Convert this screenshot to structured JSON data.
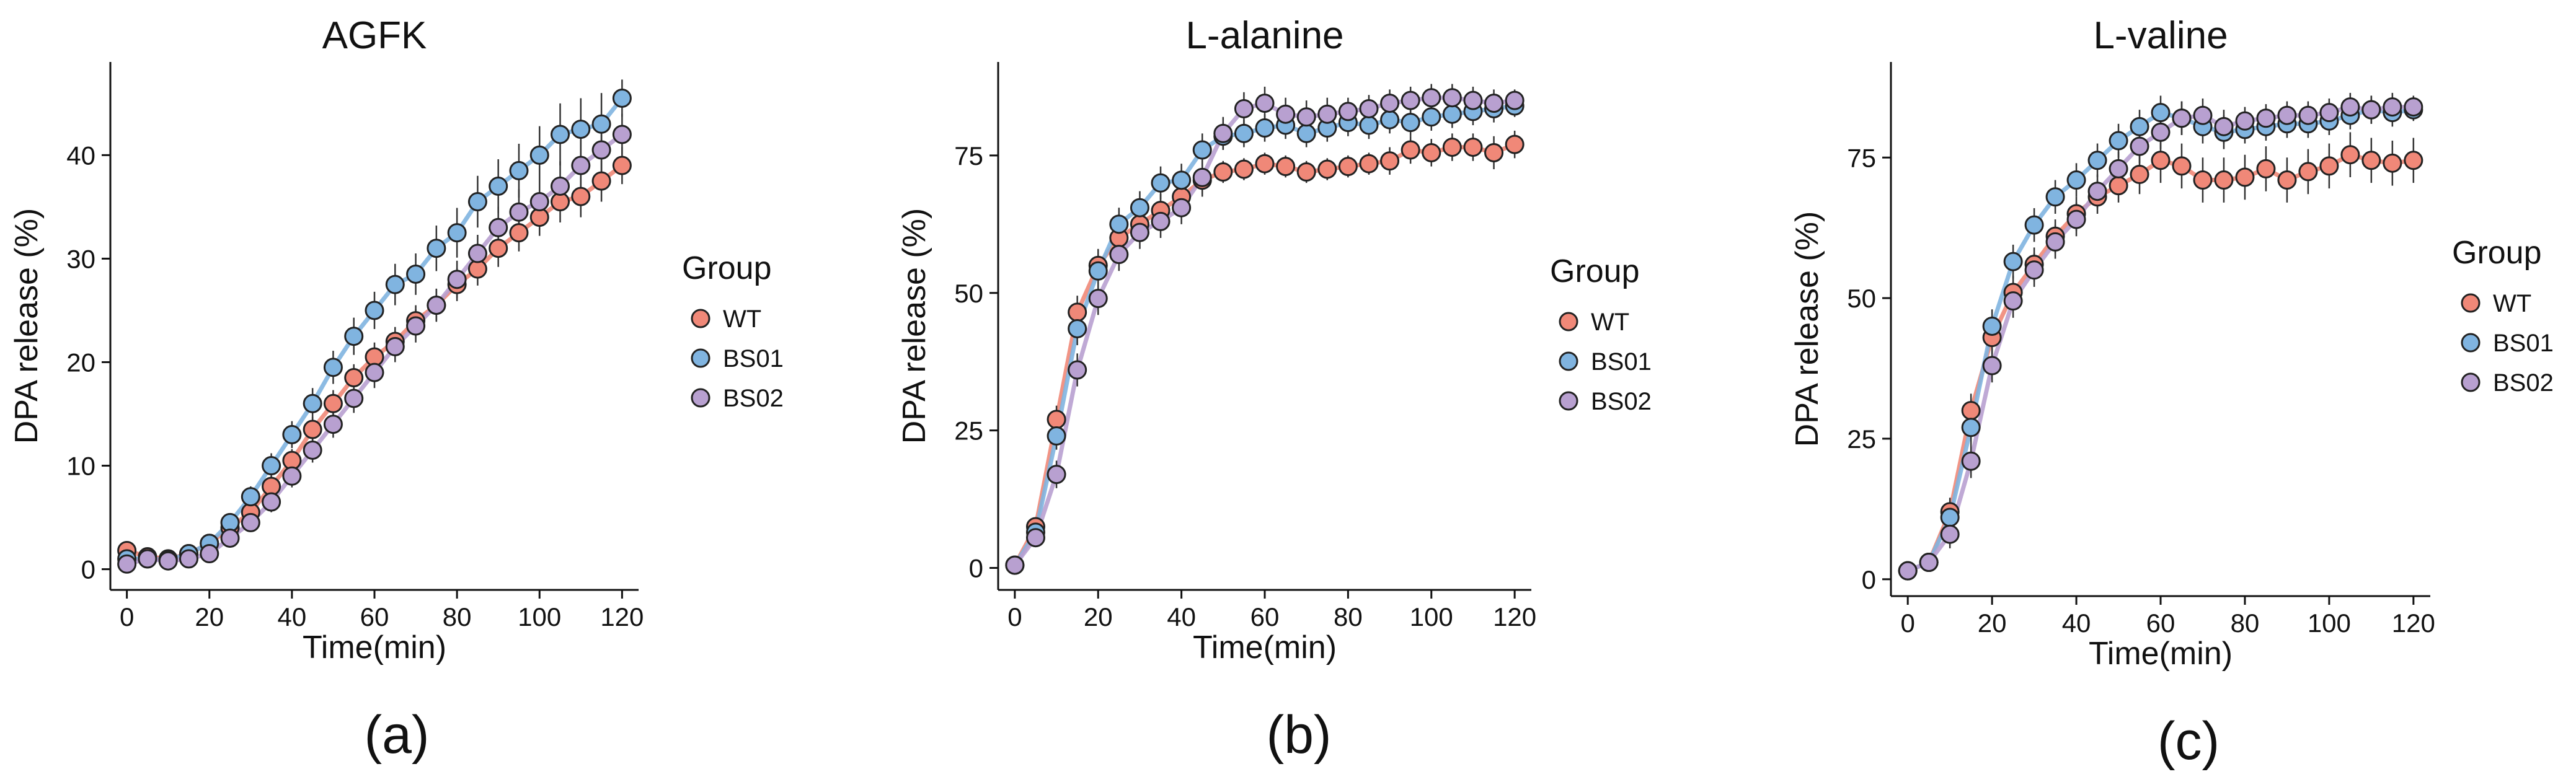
{
  "chart_data": [
    {
      "type": "line",
      "title": "AGFK",
      "panel_label": "(a)",
      "xlabel": "Time(min)",
      "ylabel": "DPA release (%)",
      "xlim": [
        -4,
        124
      ],
      "ylim": [
        -2,
        49
      ],
      "xticks": [
        0,
        20,
        40,
        60,
        80,
        100,
        120
      ],
      "yticks": [
        0,
        10,
        20,
        30,
        40
      ],
      "legend_title": "Group",
      "x": [
        0,
        5,
        10,
        15,
        20,
        25,
        30,
        35,
        40,
        45,
        50,
        55,
        60,
        65,
        70,
        75,
        80,
        85,
        90,
        95,
        100,
        105,
        110,
        115,
        120
      ],
      "series": [
        {
          "name": "WT",
          "color": "#f08878",
          "values": [
            1.8,
            1.2,
            1.0,
            1.5,
            2.5,
            4.0,
            5.5,
            8.0,
            10.5,
            13.5,
            16.0,
            18.5,
            20.5,
            22.0,
            24.0,
            25.5,
            27.5,
            29.0,
            31.0,
            32.5,
            34.0,
            35.5,
            36.0,
            37.5,
            39.0
          ],
          "errors": [
            0.8,
            0.5,
            0.5,
            0.5,
            0.6,
            0.8,
            0.9,
            1.0,
            1.1,
            1.2,
            1.3,
            1.3,
            1.4,
            1.4,
            1.5,
            1.5,
            1.6,
            1.6,
            1.8,
            1.8,
            1.8,
            2.0,
            2.0,
            2.0,
            1.8
          ]
        },
        {
          "name": "BS01",
          "color": "#80b4e0",
          "values": [
            1.0,
            1.0,
            0.9,
            1.5,
            2.5,
            4.5,
            7.0,
            10.0,
            13.0,
            16.0,
            19.5,
            22.5,
            25.0,
            27.5,
            28.5,
            31.0,
            32.5,
            35.5,
            37.0,
            38.5,
            40.0,
            42.0,
            42.5,
            43.0,
            45.5
          ],
          "errors": [
            0.5,
            0.5,
            0.5,
            0.5,
            0.6,
            0.8,
            1.0,
            1.2,
            1.3,
            1.5,
            1.6,
            1.8,
            1.8,
            2.0,
            2.0,
            2.2,
            2.4,
            2.5,
            2.6,
            2.6,
            2.8,
            3.0,
            3.0,
            3.0,
            1.8
          ]
        },
        {
          "name": "BS02",
          "color": "#b8a0d0",
          "values": [
            0.5,
            1.0,
            0.8,
            1.0,
            1.5,
            3.0,
            4.5,
            6.5,
            9.0,
            11.5,
            14.0,
            16.5,
            19.0,
            21.5,
            23.5,
            25.5,
            28.0,
            30.5,
            33.0,
            34.5,
            35.5,
            37.0,
            39.0,
            40.5,
            42.0
          ],
          "errors": [
            0.6,
            0.5,
            0.5,
            0.5,
            0.6,
            0.7,
            0.8,
            1.0,
            1.1,
            1.2,
            1.3,
            1.4,
            1.5,
            1.5,
            1.6,
            1.6,
            1.8,
            1.8,
            2.0,
            2.2,
            2.2,
            2.4,
            2.6,
            2.6,
            2.0
          ]
        }
      ]
    },
    {
      "type": "line",
      "title": "L-alanine",
      "panel_label": "(b)",
      "xlabel": "Time(min)",
      "ylabel": "DPA release (%)",
      "xlim": [
        -4,
        124
      ],
      "ylim": [
        -4,
        92
      ],
      "xticks": [
        0,
        20,
        40,
        60,
        80,
        100,
        120
      ],
      "yticks": [
        0,
        25,
        50,
        75
      ],
      "legend_title": "Group",
      "x": [
        0,
        5,
        10,
        15,
        20,
        25,
        30,
        35,
        40,
        45,
        50,
        55,
        60,
        65,
        70,
        75,
        80,
        85,
        90,
        95,
        100,
        105,
        110,
        115,
        120
      ],
      "series": [
        {
          "name": "WT",
          "color": "#f08878",
          "values": [
            0.5,
            7.5,
            27.0,
            46.5,
            55.0,
            60.0,
            62.5,
            65.0,
            67.5,
            70.5,
            72.0,
            72.5,
            73.5,
            73.0,
            72.0,
            72.5,
            73.0,
            73.5,
            74.0,
            76.0,
            75.5,
            76.5,
            76.5,
            75.5,
            77.0
          ],
          "errors": [
            0.8,
            1.0,
            2.5,
            3.0,
            3.0,
            3.0,
            3.0,
            3.0,
            3.0,
            3.0,
            2.0,
            2.0,
            2.0,
            2.0,
            2.0,
            2.0,
            2.0,
            2.0,
            2.5,
            2.5,
            2.5,
            2.5,
            2.5,
            3.0,
            2.5
          ]
        },
        {
          "name": "BS01",
          "color": "#80b4e0",
          "values": [
            0.5,
            6.5,
            24.0,
            43.5,
            54.0,
            62.5,
            65.5,
            70.0,
            70.5,
            76.0,
            78.5,
            79.0,
            80.0,
            80.5,
            79.0,
            80.0,
            81.0,
            80.5,
            81.5,
            81.0,
            82.0,
            82.5,
            83.0,
            83.5,
            84.0
          ],
          "errors": [
            0.8,
            1.0,
            2.5,
            3.0,
            3.0,
            3.0,
            3.0,
            3.0,
            3.0,
            3.0,
            2.5,
            2.5,
            2.5,
            2.5,
            2.5,
            2.5,
            2.5,
            2.5,
            2.5,
            2.5,
            2.5,
            2.5,
            2.5,
            2.5,
            2.0
          ]
        },
        {
          "name": "BS02",
          "color": "#b8a0d0",
          "values": [
            0.5,
            5.5,
            17.0,
            36.0,
            49.0,
            57.0,
            61.0,
            63.0,
            65.5,
            71.0,
            79.0,
            83.5,
            84.5,
            82.5,
            82.0,
            82.5,
            83.0,
            83.5,
            84.5,
            85.0,
            85.5,
            85.5,
            85.0,
            84.5,
            85.0
          ],
          "errors": [
            0.8,
            1.0,
            2.5,
            3.0,
            3.0,
            3.0,
            3.0,
            3.0,
            3.0,
            3.0,
            3.0,
            3.0,
            3.0,
            3.0,
            3.0,
            3.0,
            2.5,
            2.5,
            2.5,
            2.5,
            2.5,
            2.5,
            2.5,
            2.5,
            2.0
          ]
        }
      ]
    },
    {
      "type": "line",
      "title": "L-valine",
      "panel_label": "(c)",
      "xlabel": "Time(min)",
      "ylabel": "DPA release (%)",
      "xlim": [
        -4,
        124
      ],
      "ylim": [
        -3,
        92
      ],
      "xticks": [
        0,
        20,
        40,
        60,
        80,
        100,
        120
      ],
      "yticks": [
        0,
        25,
        50,
        75
      ],
      "legend_title": "Group",
      "x": [
        0,
        5,
        10,
        15,
        20,
        25,
        30,
        35,
        40,
        45,
        50,
        55,
        60,
        65,
        70,
        75,
        80,
        85,
        90,
        95,
        100,
        105,
        110,
        115,
        120
      ],
      "series": [
        {
          "name": "WT",
          "color": "#f08878",
          "values": [
            1.5,
            3.0,
            12.0,
            30.0,
            43.0,
            51.0,
            56.0,
            61.0,
            65.0,
            68.0,
            70.0,
            72.0,
            74.5,
            73.5,
            71.0,
            71.0,
            71.5,
            73.0,
            71.0,
            72.5,
            73.5,
            75.5,
            74.5,
            74.0,
            74.5
          ],
          "errors": [
            0.8,
            1.0,
            2.5,
            3.0,
            3.0,
            3.0,
            3.0,
            3.0,
            3.0,
            3.0,
            3.0,
            3.5,
            4.0,
            4.0,
            4.0,
            4.0,
            4.0,
            4.0,
            4.0,
            4.0,
            4.0,
            4.0,
            4.0,
            4.0,
            4.0
          ]
        },
        {
          "name": "BS01",
          "color": "#80b4e0",
          "values": [
            1.5,
            3.0,
            11.0,
            27.0,
            45.0,
            56.5,
            63.0,
            68.0,
            71.0,
            74.5,
            78.0,
            80.5,
            83.0,
            82.0,
            80.5,
            79.5,
            80.0,
            80.5,
            81.0,
            81.0,
            81.5,
            82.5,
            83.5,
            83.0,
            83.5
          ],
          "errors": [
            0.8,
            1.0,
            2.5,
            3.0,
            3.0,
            3.0,
            3.0,
            3.0,
            3.0,
            3.0,
            3.0,
            3.0,
            3.0,
            3.0,
            3.0,
            3.0,
            2.5,
            2.5,
            2.5,
            2.5,
            2.5,
            2.5,
            2.5,
            2.5,
            2.0
          ]
        },
        {
          "name": "BS02",
          "color": "#b8a0d0",
          "values": [
            1.5,
            3.0,
            8.0,
            21.0,
            38.0,
            49.5,
            55.0,
            60.0,
            64.0,
            69.0,
            73.0,
            77.0,
            79.5,
            82.0,
            82.5,
            80.5,
            81.5,
            82.0,
            82.5,
            82.5,
            83.0,
            84.0,
            83.5,
            84.0,
            84.0
          ],
          "errors": [
            0.8,
            1.0,
            2.5,
            3.0,
            3.0,
            3.0,
            3.0,
            3.0,
            3.0,
            3.0,
            3.0,
            3.0,
            3.0,
            3.0,
            3.0,
            3.0,
            2.5,
            2.5,
            2.5,
            2.5,
            2.5,
            2.5,
            2.5,
            2.5,
            2.0
          ]
        }
      ]
    }
  ]
}
